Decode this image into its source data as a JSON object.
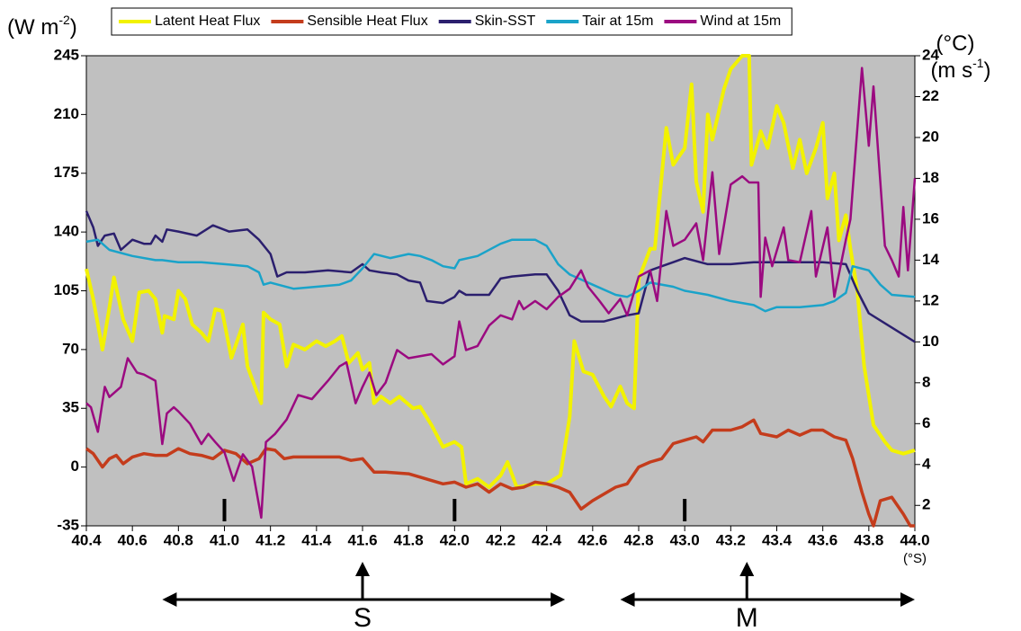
{
  "chart_data": {
    "type": "line",
    "ylabel": [
      "(W m",
      "-2",
      ")"
    ],
    "y2label": [
      "(°C)"
    ],
    "y2label2": [
      "(m s",
      "-1",
      ")"
    ],
    "xunit": "(°S)",
    "xlim": [
      40.4,
      44.0
    ],
    "xticks": [
      40.4,
      40.6,
      40.8,
      {
        "value": 41.0,
        "label": "41.0"
      },
      41.2,
      41.4,
      41.6,
      41.8,
      {
        "value": 42.0,
        "label": "42.0"
      },
      42.2,
      42.4,
      42.6,
      42.8,
      {
        "value": 43.0,
        "label": "43.0"
      },
      43.2,
      43.4,
      43.6,
      43.8,
      {
        "value": 44.0,
        "label": "44.0"
      }
    ],
    "ylim": [
      -35,
      245
    ],
    "yticks": [
      -35,
      0,
      35,
      70,
      105,
      140,
      175,
      210,
      245
    ],
    "y2lim": [
      1,
      24
    ],
    "y2ticks": [
      2,
      4,
      6,
      8,
      10,
      12,
      14,
      16,
      18,
      20,
      22,
      24
    ],
    "plot_background": "#c0c0c0",
    "markers": [
      41.0,
      42.0,
      43.0
    ],
    "annotations": [
      {
        "text": "S",
        "x_range": [
          40.73,
          42.48
        ],
        "x_point": 41.6
      },
      {
        "text": "M",
        "x_range": [
          42.72,
          44.0
        ],
        "x_point": 43.27
      }
    ],
    "series": [
      {
        "name": "Latent Heat Flux",
        "color": "#f2f200",
        "axis": "y",
        "x": [
          40.4,
          40.43,
          40.47,
          40.5,
          40.52,
          40.56,
          40.6,
          40.63,
          40.67,
          40.7,
          40.73,
          40.74,
          40.78,
          40.8,
          40.83,
          40.86,
          40.9,
          40.93,
          40.96,
          40.99,
          41.03,
          41.08,
          41.1,
          41.14,
          41.16,
          41.17,
          41.2,
          41.24,
          41.27,
          41.3,
          41.35,
          41.4,
          41.44,
          41.48,
          41.51,
          41.54,
          41.58,
          41.6,
          41.63,
          41.65,
          41.68,
          41.72,
          41.76,
          41.82,
          41.85,
          41.9,
          41.95,
          42.0,
          42.03,
          42.05,
          42.1,
          42.15,
          42.2,
          42.23,
          42.27,
          42.35,
          42.4,
          42.46,
          42.5,
          42.52,
          42.56,
          42.6,
          42.65,
          42.68,
          42.72,
          42.75,
          42.78,
          42.8,
          42.85,
          42.87,
          42.92,
          42.95,
          43.0,
          43.03,
          43.05,
          43.08,
          43.1,
          43.12,
          43.17,
          43.2,
          43.25,
          43.28,
          43.29,
          43.33,
          43.36,
          43.4,
          43.43,
          43.47,
          43.5,
          43.53,
          43.57,
          43.6,
          43.62,
          43.65,
          43.67,
          43.7,
          43.72,
          43.75,
          43.78,
          43.82,
          43.87,
          43.9,
          43.95,
          44.0
        ],
        "values": [
          118,
          100,
          70,
          95,
          113,
          88,
          75,
          104,
          105,
          100,
          80,
          90,
          88,
          105,
          100,
          85,
          80,
          75,
          94,
          93,
          65,
          85,
          60,
          45,
          38,
          92,
          88,
          85,
          60,
          73,
          70,
          75,
          72,
          75,
          78,
          62,
          68,
          58,
          62,
          38,
          42,
          38,
          42,
          35,
          36,
          25,
          12,
          15,
          12,
          -10,
          -7,
          -12,
          -5,
          3,
          -12,
          -10,
          -10,
          -5,
          30,
          75,
          57,
          55,
          42,
          36,
          48,
          38,
          35,
          112,
          130,
          130,
          202,
          180,
          190,
          228,
          170,
          152,
          210,
          195,
          225,
          237,
          245,
          245,
          180,
          200,
          190,
          215,
          205,
          178,
          195,
          175,
          190,
          205,
          160,
          175,
          135,
          150,
          130,
          105,
          60,
          25,
          15,
          10,
          8,
          10
        ]
      },
      {
        "name": "Sensible Heat Flux",
        "color": "#c43c1c",
        "axis": "y",
        "x": [
          40.4,
          40.43,
          40.47,
          40.5,
          40.53,
          40.56,
          40.6,
          40.65,
          40.7,
          40.75,
          40.8,
          40.85,
          40.9,
          40.95,
          41.0,
          41.05,
          41.1,
          41.15,
          41.18,
          41.22,
          41.26,
          41.3,
          41.4,
          41.5,
          41.55,
          41.6,
          41.65,
          41.7,
          41.8,
          41.85,
          41.9,
          41.95,
          42.0,
          42.05,
          42.1,
          42.15,
          42.2,
          42.25,
          42.3,
          42.35,
          42.4,
          42.45,
          42.5,
          42.55,
          42.6,
          42.7,
          42.75,
          42.8,
          42.85,
          42.9,
          42.95,
          43.0,
          43.05,
          43.08,
          43.12,
          43.2,
          43.25,
          43.3,
          43.33,
          43.4,
          43.45,
          43.5,
          43.55,
          43.6,
          43.65,
          43.7,
          43.73,
          43.77,
          43.8,
          43.82,
          43.85,
          43.9,
          43.95,
          43.98,
          44.0
        ],
        "values": [
          11,
          8,
          0,
          5,
          7,
          2,
          6,
          8,
          7,
          7,
          11,
          8,
          7,
          5,
          10,
          8,
          2,
          5,
          11,
          10,
          5,
          6,
          6,
          6,
          4,
          5,
          -3,
          -3,
          -4,
          -6,
          -8,
          -10,
          -9,
          -12,
          -10,
          -15,
          -10,
          -13,
          -12,
          -9,
          -10,
          -12,
          -15,
          -25,
          -20,
          -12,
          -10,
          0,
          3,
          5,
          14,
          16,
          18,
          15,
          22,
          22,
          24,
          28,
          20,
          18,
          22,
          19,
          22,
          22,
          18,
          16,
          5,
          -15,
          -28,
          -35,
          -20,
          -18,
          -28,
          -35,
          -35
        ]
      },
      {
        "name": "Skin-SST",
        "color": "#2b1f6e",
        "axis": "y2",
        "x": [
          40.4,
          40.43,
          40.45,
          40.48,
          40.52,
          40.55,
          40.6,
          40.65,
          40.68,
          40.7,
          40.73,
          40.75,
          40.8,
          40.88,
          40.95,
          41.02,
          41.1,
          41.15,
          41.2,
          41.23,
          41.27,
          41.35,
          41.45,
          41.55,
          41.6,
          41.63,
          41.68,
          41.75,
          41.8,
          41.85,
          41.88,
          41.95,
          42.0,
          42.02,
          42.05,
          42.1,
          42.15,
          42.2,
          42.25,
          42.35,
          42.4,
          42.45,
          42.5,
          42.55,
          42.65,
          42.75,
          42.8,
          42.85,
          42.9,
          42.95,
          43.0,
          43.1,
          43.2,
          43.3,
          43.4,
          43.5,
          43.6,
          43.7,
          43.75,
          43.8,
          43.9,
          44.0
        ],
        "values": [
          16.4,
          15.6,
          14.7,
          15.2,
          15.3,
          14.5,
          15.0,
          14.8,
          14.8,
          15.2,
          14.9,
          15.5,
          15.4,
          15.2,
          15.7,
          15.4,
          15.5,
          15.0,
          14.3,
          13.2,
          13.4,
          13.4,
          13.5,
          13.4,
          13.8,
          13.5,
          13.4,
          13.3,
          13.0,
          12.9,
          12.0,
          11.9,
          12.2,
          12.5,
          12.3,
          12.3,
          12.3,
          13.1,
          13.2,
          13.3,
          13.3,
          12.5,
          11.3,
          11.0,
          11.0,
          11.3,
          11.4,
          13.5,
          13.7,
          13.9,
          14.1,
          13.8,
          13.8,
          13.9,
          13.9,
          13.9,
          13.9,
          13.8,
          12.5,
          11.4,
          10.7,
          10.0
        ]
      },
      {
        "name": "Tair at 15m",
        "color": "#1aa3c9",
        "axis": "y2",
        "x": [
          40.4,
          40.45,
          40.5,
          40.6,
          40.7,
          40.73,
          40.8,
          40.9,
          41.0,
          41.1,
          41.15,
          41.17,
          41.2,
          41.3,
          41.4,
          41.5,
          41.55,
          41.6,
          41.65,
          41.72,
          41.8,
          41.85,
          41.9,
          41.95,
          42.0,
          42.02,
          42.1,
          42.2,
          42.25,
          42.35,
          42.4,
          42.45,
          42.5,
          42.6,
          42.7,
          42.75,
          42.8,
          42.85,
          42.95,
          43.0,
          43.1,
          43.2,
          43.3,
          43.35,
          43.4,
          43.5,
          43.6,
          43.65,
          43.7,
          43.73,
          43.8,
          43.85,
          43.9,
          44.0
        ],
        "values": [
          14.9,
          15.0,
          14.5,
          14.2,
          14.0,
          14.0,
          13.9,
          13.9,
          13.8,
          13.7,
          13.4,
          12.8,
          12.9,
          12.6,
          12.7,
          12.8,
          13.0,
          13.6,
          14.3,
          14.1,
          14.3,
          14.2,
          14.0,
          13.7,
          13.6,
          14.0,
          14.2,
          14.8,
          15.0,
          15.0,
          14.7,
          13.8,
          13.3,
          12.8,
          12.3,
          12.2,
          12.5,
          12.9,
          12.7,
          12.5,
          12.3,
          12.0,
          11.8,
          11.5,
          11.7,
          11.7,
          11.8,
          12.0,
          12.4,
          13.7,
          13.5,
          12.8,
          12.3,
          12.2
        ]
      },
      {
        "name": "Wind at 15m",
        "color": "#9b0a80",
        "axis": "y2",
        "x": [
          40.4,
          40.42,
          40.45,
          40.48,
          40.5,
          40.55,
          40.58,
          40.62,
          40.65,
          40.7,
          40.73,
          40.75,
          40.78,
          40.8,
          40.85,
          40.9,
          40.93,
          40.96,
          41.0,
          41.04,
          41.08,
          41.12,
          41.16,
          41.18,
          41.22,
          41.27,
          41.32,
          41.38,
          41.45,
          41.5,
          41.53,
          41.57,
          41.6,
          41.63,
          41.66,
          41.7,
          41.75,
          41.8,
          41.9,
          41.95,
          42.0,
          42.02,
          42.05,
          42.1,
          42.15,
          42.2,
          42.25,
          42.28,
          42.3,
          42.35,
          42.4,
          42.45,
          42.5,
          42.55,
          42.58,
          42.63,
          42.67,
          42.72,
          42.75,
          42.8,
          42.85,
          42.88,
          42.92,
          42.95,
          43.0,
          43.05,
          43.08,
          43.12,
          43.15,
          43.2,
          43.25,
          43.28,
          43.32,
          43.33,
          43.35,
          43.38,
          43.43,
          43.45,
          43.5,
          43.55,
          43.57,
          43.62,
          43.65,
          43.7,
          43.72,
          43.77,
          43.8,
          43.82,
          43.87,
          43.9,
          43.93,
          43.95,
          43.97,
          44.0
        ],
        "values": [
          7.0,
          6.8,
          5.6,
          7.8,
          7.3,
          7.8,
          9.2,
          8.5,
          8.4,
          8.1,
          5.0,
          6.5,
          6.8,
          6.6,
          6.0,
          5.0,
          5.5,
          5.1,
          4.6,
          3.2,
          4.5,
          3.9,
          1.4,
          5.1,
          5.5,
          6.2,
          7.4,
          7.2,
          8.1,
          8.8,
          9.0,
          7.0,
          7.8,
          8.5,
          7.4,
          8.0,
          9.6,
          9.2,
          9.4,
          8.9,
          9.3,
          11.0,
          9.6,
          9.8,
          10.8,
          11.3,
          11.1,
          12.0,
          11.6,
          12.0,
          11.6,
          12.2,
          12.6,
          13.5,
          12.7,
          12.0,
          11.4,
          12.1,
          11.3,
          13.2,
          13.5,
          12.0,
          16.4,
          14.7,
          15.0,
          15.8,
          14.0,
          18.3,
          14.3,
          17.7,
          18.1,
          17.8,
          17.8,
          12.2,
          15.1,
          13.7,
          15.6,
          14.0,
          13.9,
          16.4,
          13.2,
          15.6,
          12.2,
          15.0,
          16.0,
          23.4,
          19.6,
          22.5,
          14.7,
          14.0,
          13.2,
          16.6,
          13.5,
          18.0
        ]
      }
    ]
  }
}
